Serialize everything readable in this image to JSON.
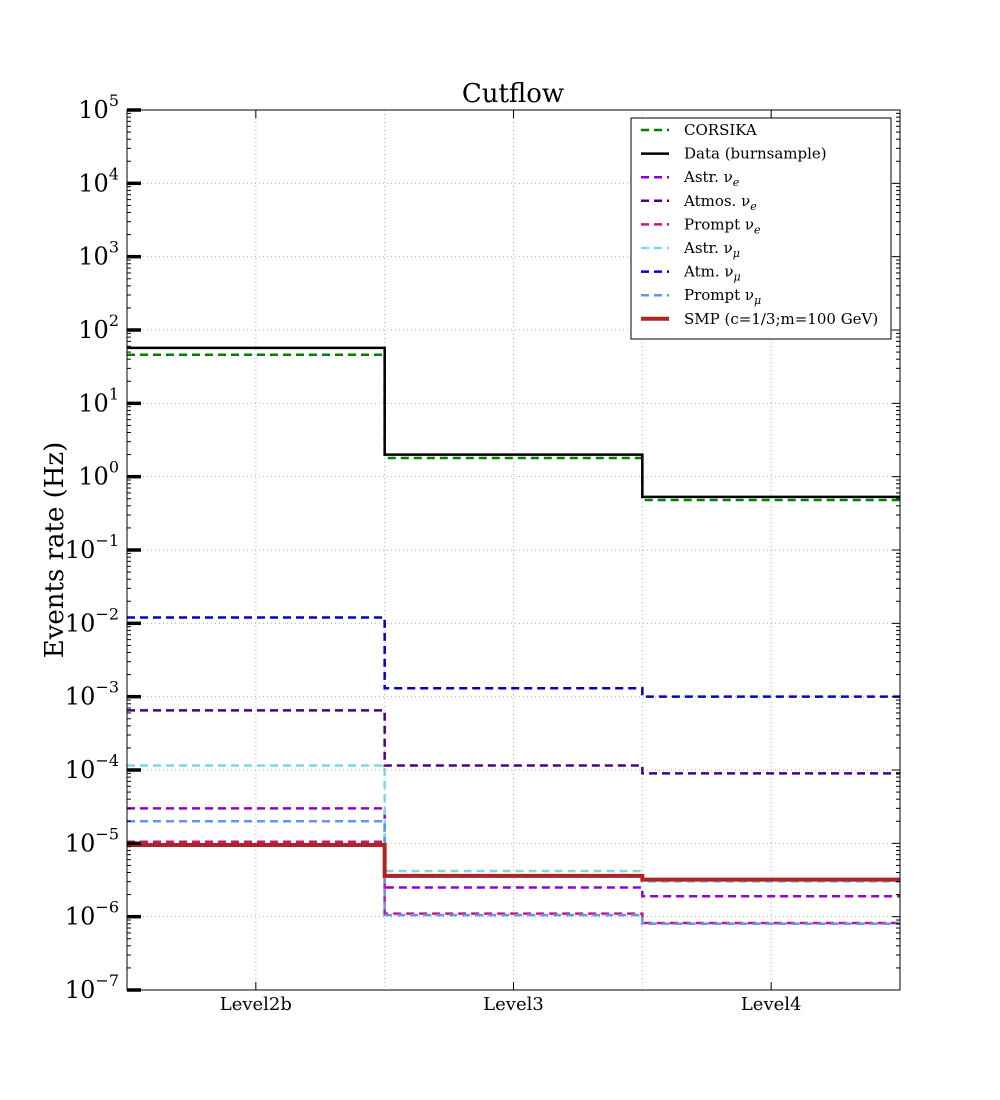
{
  "chart_data": {
    "type": "line",
    "title": "Cutflow",
    "ylabel": "Events rate (Hz)",
    "xlabel": "",
    "yscale": "log",
    "ylim": [
      1e-07,
      100000.0
    ],
    "grid": true,
    "legend_position": "top-right",
    "categories": [
      "Level2b",
      "Level3",
      "Level4"
    ],
    "y_tick_exponents": [
      "5",
      "4",
      "3",
      "2",
      "1",
      "0",
      "−1",
      "−2",
      "−3",
      "−4",
      "−5",
      "−6",
      "−7"
    ],
    "series": [
      {
        "name": "CORSIKA",
        "label_main": "CORSIKA",
        "label_sub": "",
        "color": "#008000",
        "style": "dashed",
        "values": [
          46,
          1.8,
          0.48
        ]
      },
      {
        "name": "Data (burnsample)",
        "label_main": "Data (burnsample)",
        "label_sub": "",
        "color": "#000000",
        "style": "solid",
        "values": [
          57,
          2.0,
          0.53
        ]
      },
      {
        "name": "Astr. νe",
        "label_main": "Astr. ν",
        "label_sub": "e",
        "color": "#9400d3",
        "style": "dashed",
        "values": [
          3e-05,
          2.5e-06,
          1.9e-06
        ]
      },
      {
        "name": "Atmos. νe",
        "label_main": "Atmos. ν",
        "label_sub": "e",
        "color": "#4b0082",
        "style": "dashed",
        "values": [
          0.00065,
          0.000115,
          9e-05
        ]
      },
      {
        "name": "Prompt νe",
        "label_main": "Prompt ν",
        "label_sub": "e",
        "color": "#c71585",
        "style": "dashed",
        "values": [
          1.05e-05,
          1.1e-06,
          8.2e-07
        ]
      },
      {
        "name": "Astr. νμ",
        "label_main": "Astr. ν",
        "label_sub": "μ",
        "color": "#7fd8e0",
        "style": "dashed",
        "values": [
          0.000115,
          4.2e-06,
          3e-06
        ]
      },
      {
        "name": "Atm. νμ",
        "label_main": "Atm. ν",
        "label_sub": "μ",
        "color": "#0000cd",
        "style": "dashed",
        "values": [
          0.012,
          0.0013,
          0.001
        ]
      },
      {
        "name": "Prompt νμ",
        "label_main": "Prompt ν",
        "label_sub": "μ",
        "color": "#6495ed",
        "style": "dashed",
        "values": [
          2e-05,
          1.05e-06,
          8e-07
        ]
      },
      {
        "name": "SMP (c=1/3;m=100 GeV)",
        "label_main": "SMP (c=1/3;m=100 GeV)",
        "label_sub": "",
        "color": "#b22222",
        "style": "thick",
        "values": [
          9.5e-06,
          3.6e-06,
          3.2e-06
        ]
      }
    ]
  }
}
